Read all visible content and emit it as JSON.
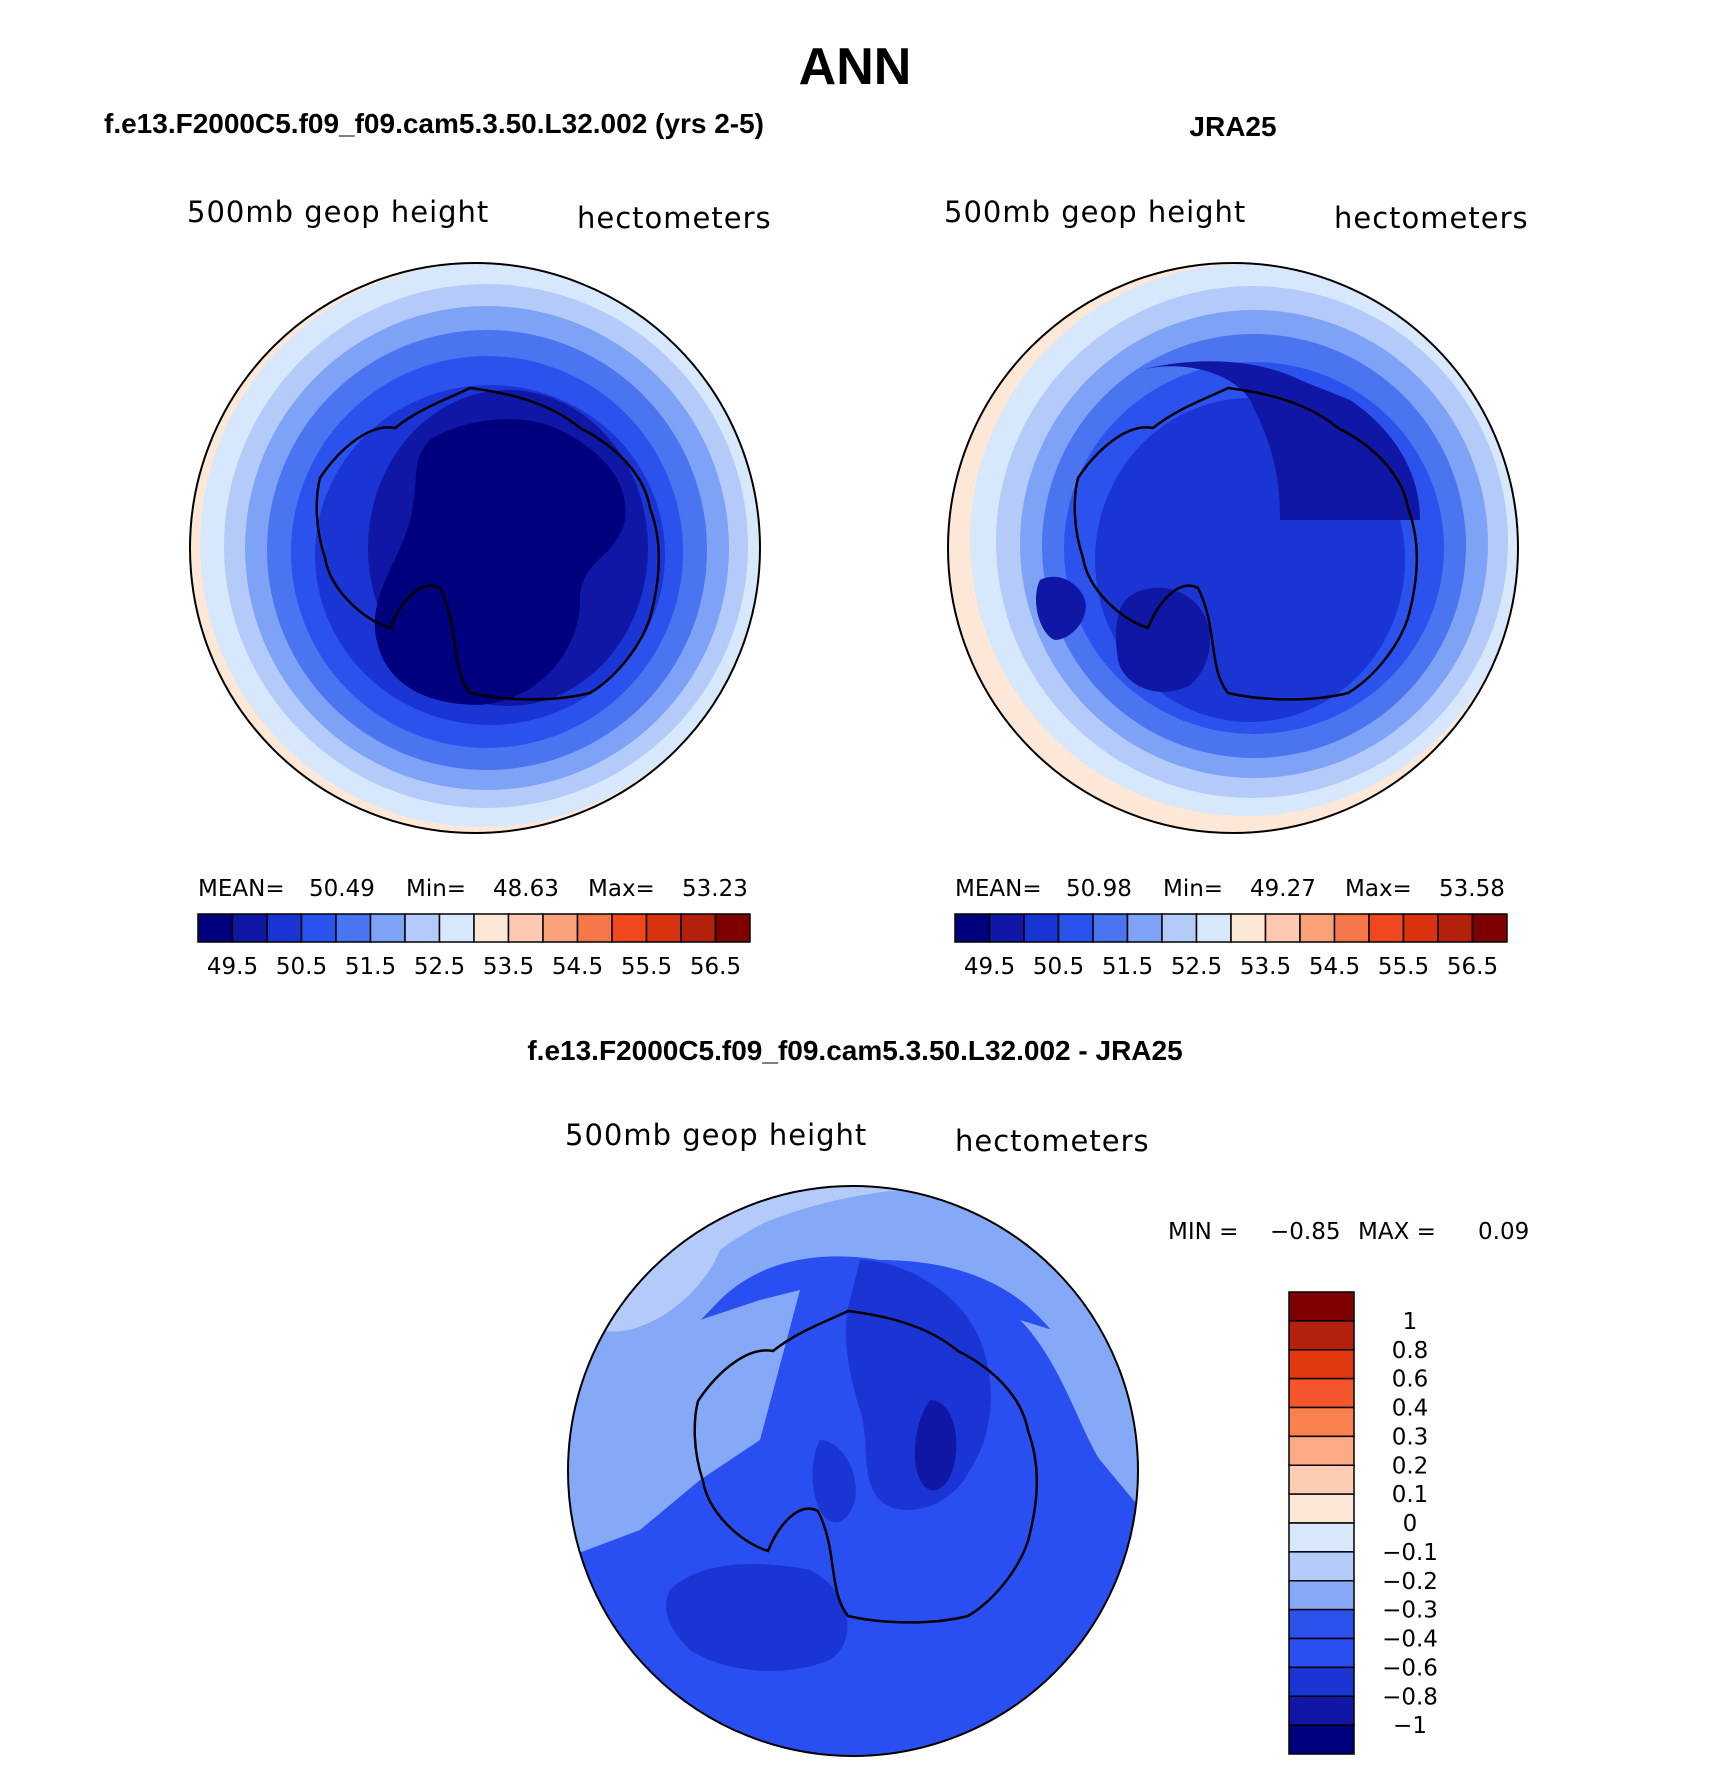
{
  "title": "ANN",
  "chart_data": [
    {
      "type": "heatmap",
      "projection": "south-polar-stereographic",
      "title": "f.e13.F2000C5.f09_f09.cam5.3.50.L32.002 (yrs 2-5)",
      "variable": "500mb geop height",
      "units": "hectometers",
      "stats": {
        "mean_label": "MEAN=",
        "mean": "50.49",
        "min_label": "Min=",
        "min": "48.63",
        "max_label": "Max=",
        "max": "53.23"
      },
      "colorbar": {
        "orientation": "horizontal",
        "tick_labels": [
          "49.5",
          "50.5",
          "51.5",
          "52.5",
          "53.5",
          "54.5",
          "55.5",
          "56.5"
        ],
        "colors": [
          "#00007f",
          "#0f17a4",
          "#1a35d4",
          "#2c52ee",
          "#4a74f0",
          "#7ea2f6",
          "#b4cbfa",
          "#d8e8fc",
          "#fde7d6",
          "#fcc9b0",
          "#f9a27a",
          "#f6784a",
          "#f0491f",
          "#d93312",
          "#b3210c",
          "#7f0000"
        ]
      }
    },
    {
      "type": "heatmap",
      "projection": "south-polar-stereographic",
      "title": "JRA25",
      "variable": "500mb geop height",
      "units": "hectometers",
      "stats": {
        "mean_label": "MEAN=",
        "mean": "50.98",
        "min_label": "Min=",
        "min": "49.27",
        "max_label": "Max=",
        "max": "53.58"
      },
      "colorbar": {
        "orientation": "horizontal",
        "tick_labels": [
          "49.5",
          "50.5",
          "51.5",
          "52.5",
          "53.5",
          "54.5",
          "55.5",
          "56.5"
        ],
        "colors": [
          "#00007f",
          "#0f17a4",
          "#1a35d4",
          "#2c52ee",
          "#4a74f0",
          "#7ea2f6",
          "#b4cbfa",
          "#d8e8fc",
          "#fde7d6",
          "#fcc9b0",
          "#f9a27a",
          "#f6784a",
          "#f0491f",
          "#d93312",
          "#b3210c",
          "#7f0000"
        ]
      }
    },
    {
      "type": "heatmap",
      "projection": "south-polar-stereographic",
      "title": "f.e13.F2000C5.f09_f09.cam5.3.50.L32.002 - JRA25",
      "variable": "500mb geop height",
      "units": "hectometers",
      "stats": {
        "min_label": "MIN =",
        "min": "−0.85",
        "max_label": "MAX =",
        "max": "0.09"
      },
      "colorbar": {
        "orientation": "vertical",
        "tick_labels": [
          "1",
          "0.8",
          "0.6",
          "0.4",
          "0.3",
          "0.2",
          "0.1",
          "0",
          "−0.1",
          "−0.2",
          "−0.3",
          "−0.4",
          "−0.6",
          "−0.8",
          "−1"
        ],
        "colors": [
          "#7f0000",
          "#b3210c",
          "#e0380f",
          "#f6542a",
          "#f9814f",
          "#fbaa85",
          "#fcccb3",
          "#fde7d6",
          "#d8e8fc",
          "#b4cbfa",
          "#86a9f7",
          "#2c52ee",
          "#2a4ff0",
          "#1a35d4",
          "#0f17a4",
          "#00007f"
        ]
      }
    }
  ]
}
